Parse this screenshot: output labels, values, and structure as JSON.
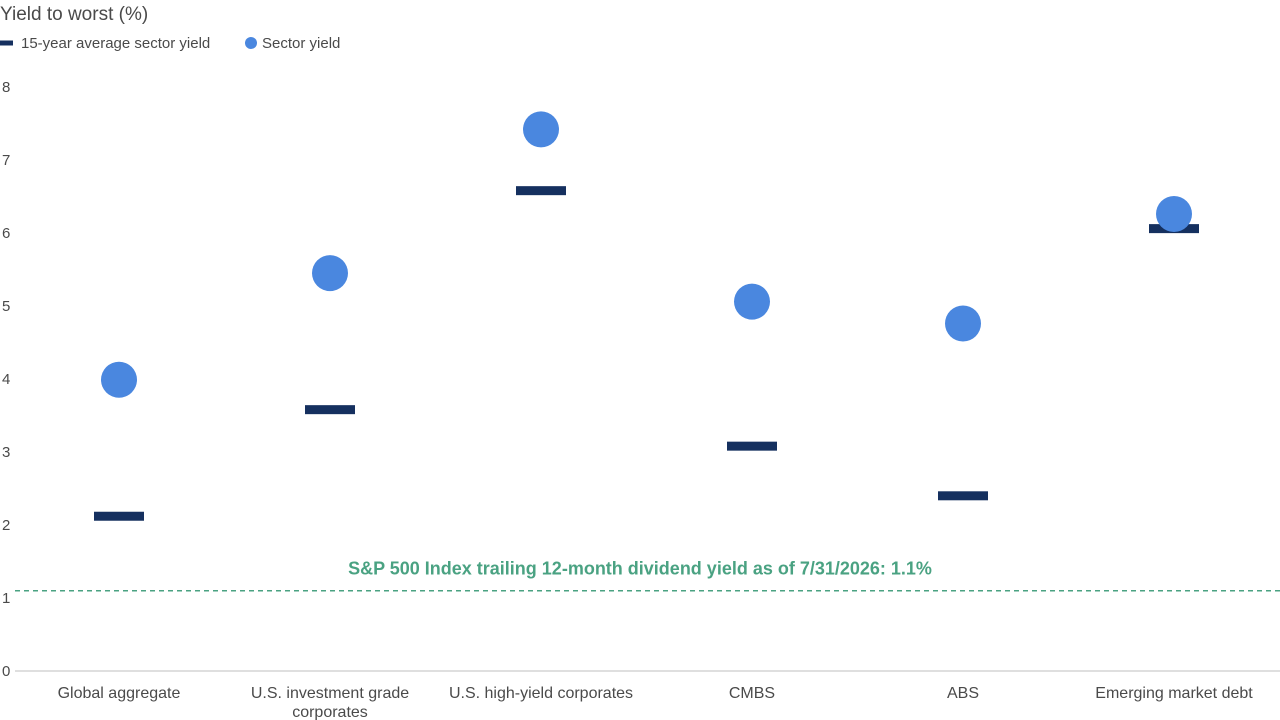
{
  "chart_data": {
    "type": "scatter",
    "ylabel": "Yield to worst (%)",
    "ylim": [
      0,
      8
    ],
    "yticks": [
      0,
      1,
      2,
      3,
      4,
      5,
      6,
      7,
      8
    ],
    "grid": false,
    "legend_position": "top-left",
    "categories": [
      [
        "Global aggregate"
      ],
      [
        "U.S. investment grade",
        "corporates"
      ],
      [
        "U.S. high-yield corporates"
      ],
      [
        "CMBS"
      ],
      [
        "ABS"
      ],
      [
        "Emerging market debt"
      ]
    ],
    "series": [
      {
        "name": "15-year average sector yield",
        "marker": "dash",
        "color": "#15305f",
        "values": [
          2.12,
          3.58,
          6.58,
          3.08,
          2.4,
          6.06
        ]
      },
      {
        "name": "Sector yield",
        "marker": "circle",
        "color": "#4a87df",
        "values": [
          3.99,
          5.45,
          7.42,
          5.06,
          4.76,
          6.26
        ]
      }
    ],
    "reference_line": {
      "value": 1.1,
      "label": "S&P 500 Index trailing 12-month dividend yield as of 7/31/2026: 1.1%",
      "color": "#4aa282",
      "style": "dashed"
    }
  }
}
